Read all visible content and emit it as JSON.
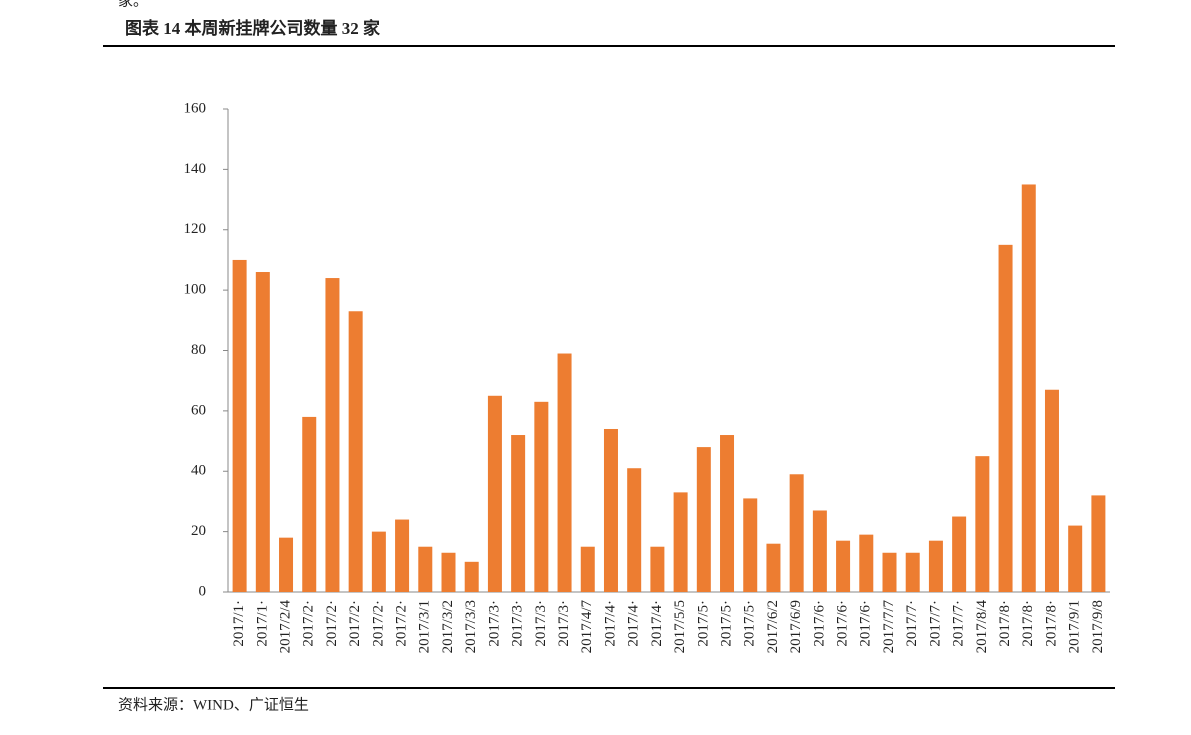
{
  "fragment": "家。",
  "title": "图表 14 本周新挂牌公司数量 32 家",
  "source": "资料来源：WIND、广证恒生",
  "chart_data": {
    "type": "bar",
    "categories": [
      "2017/1·",
      "2017/1·",
      "2017/2/4",
      "2017/2·",
      "2017/2·",
      "2017/2·",
      "2017/2·",
      "2017/2·",
      "2017/3/1",
      "2017/3/2",
      "2017/3/3",
      "2017/3·",
      "2017/3·",
      "2017/3·",
      "2017/3·",
      "2017/4/7",
      "2017/4·",
      "2017/4·",
      "2017/4·",
      "2017/5/5",
      "2017/5·",
      "2017/5·",
      "2017/5·",
      "2017/6/2",
      "2017/6/9",
      "2017/6·",
      "2017/6·",
      "2017/6·",
      "2017/7/7",
      "2017/7·",
      "2017/7·",
      "2017/7·",
      "2017/8/4",
      "2017/8·",
      "2017/8·",
      "2017/8·",
      "2017/9/1",
      "2017/9/8"
    ],
    "values": [
      110,
      106,
      18,
      58,
      104,
      93,
      20,
      24,
      15,
      13,
      10,
      65,
      52,
      63,
      79,
      15,
      54,
      41,
      15,
      33,
      48,
      52,
      31,
      16,
      39,
      27,
      17,
      19,
      13,
      13,
      17,
      25,
      45,
      115,
      135,
      67,
      22,
      32
    ],
    "color": "#ed7d31",
    "ylim": [
      0,
      160
    ],
    "yticks": [
      0,
      20,
      40,
      60,
      80,
      100,
      120,
      140,
      160
    ],
    "grid": false
  }
}
